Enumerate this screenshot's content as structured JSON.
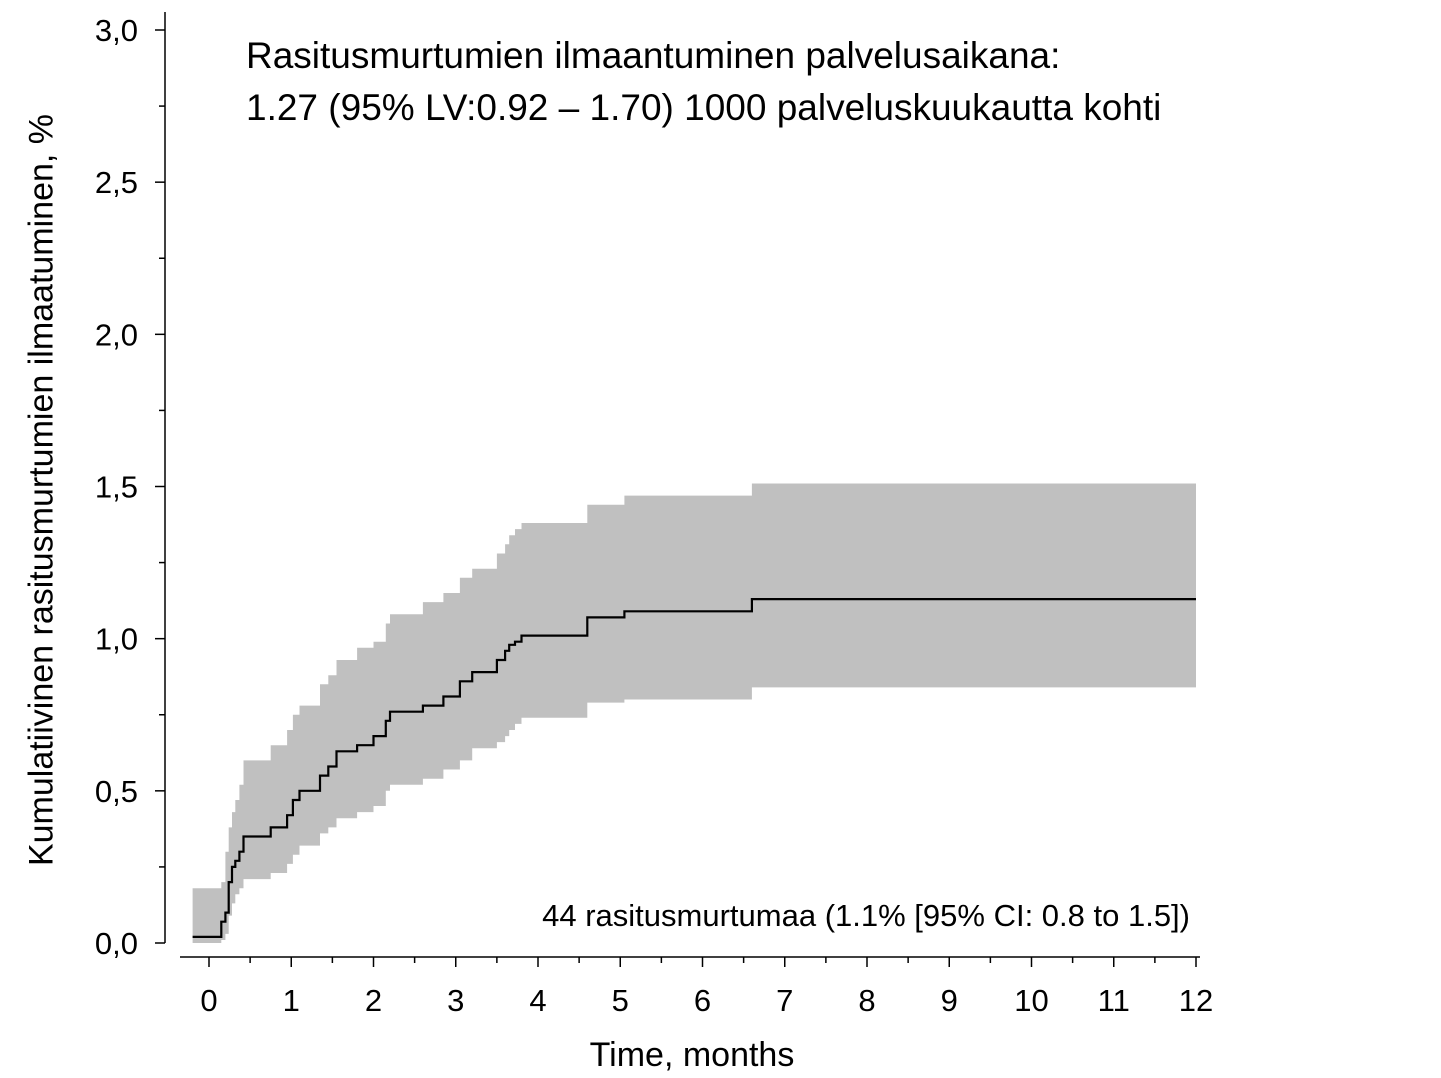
{
  "chart_data": {
    "type": "line",
    "title": "",
    "annotation_lines": [
      "Rasitusmurtumien ilmaantuminen palvelusaikana:",
      "1.27 (95% LV:0.92 – 1.70) 1000 palveluskuukautta kohti"
    ],
    "summary_text": "44 rasitusmurtumaa (1.1% [95% CI: 0.8 to 1.5])",
    "xlabel": "Time, months",
    "ylabel": "Kumulatiivinen rasitusmurtumien ilmaatuminen, %",
    "xlim": [
      -0.35,
      12
    ],
    "ylim": [
      0,
      3.0
    ],
    "x_ticks": [
      0,
      1,
      2,
      3,
      4,
      5,
      6,
      7,
      8,
      9,
      10,
      11,
      12
    ],
    "x_tick_labels": [
      "0",
      "1",
      "2",
      "3",
      "4",
      "5",
      "6",
      "7",
      "8",
      "9",
      "10",
      "11",
      "12"
    ],
    "y_ticks": [
      0,
      0.5,
      1.0,
      1.5,
      2.0,
      2.5,
      3.0
    ],
    "y_tick_labels": [
      "0,0",
      "0,5",
      "1,0",
      "1,5",
      "2,0",
      "2,5",
      "3,0"
    ],
    "grid": false,
    "series": [
      {
        "x": [
          -0.2,
          0.15,
          0.2,
          0.24,
          0.28,
          0.32,
          0.37,
          0.42,
          0.5,
          0.75,
          0.95,
          1.02,
          1.1,
          1.35,
          1.45,
          1.55,
          1.8,
          2.0,
          2.15,
          2.2,
          2.6,
          2.85,
          3.05,
          3.2,
          3.5,
          3.6,
          3.65,
          3.72,
          3.8,
          4.6,
          5.05,
          6.6,
          12.0
        ],
        "y": [
          0.02,
          0.07,
          0.1,
          0.2,
          0.25,
          0.27,
          0.3,
          0.35,
          0.35,
          0.38,
          0.42,
          0.47,
          0.5,
          0.55,
          0.58,
          0.63,
          0.65,
          0.68,
          0.73,
          0.76,
          0.78,
          0.81,
          0.86,
          0.89,
          0.93,
          0.96,
          0.98,
          0.99,
          1.01,
          1.07,
          1.09,
          1.13,
          1.13
        ],
        "ci_lower": [
          0.0,
          0.01,
          0.03,
          0.09,
          0.13,
          0.16,
          0.18,
          0.21,
          0.21,
          0.23,
          0.26,
          0.29,
          0.32,
          0.36,
          0.38,
          0.41,
          0.43,
          0.45,
          0.5,
          0.52,
          0.54,
          0.57,
          0.6,
          0.64,
          0.66,
          0.68,
          0.7,
          0.72,
          0.74,
          0.79,
          0.8,
          0.84,
          0.84
        ],
        "ci_upper": [
          0.18,
          0.2,
          0.3,
          0.38,
          0.43,
          0.47,
          0.52,
          0.6,
          0.6,
          0.65,
          0.7,
          0.75,
          0.78,
          0.85,
          0.88,
          0.93,
          0.97,
          0.99,
          1.05,
          1.08,
          1.12,
          1.15,
          1.2,
          1.23,
          1.28,
          1.31,
          1.34,
          1.36,
          1.38,
          1.44,
          1.47,
          1.51,
          1.51
        ]
      }
    ],
    "line_color": "#000000",
    "ci_fill_color": "#c0c0c0"
  }
}
